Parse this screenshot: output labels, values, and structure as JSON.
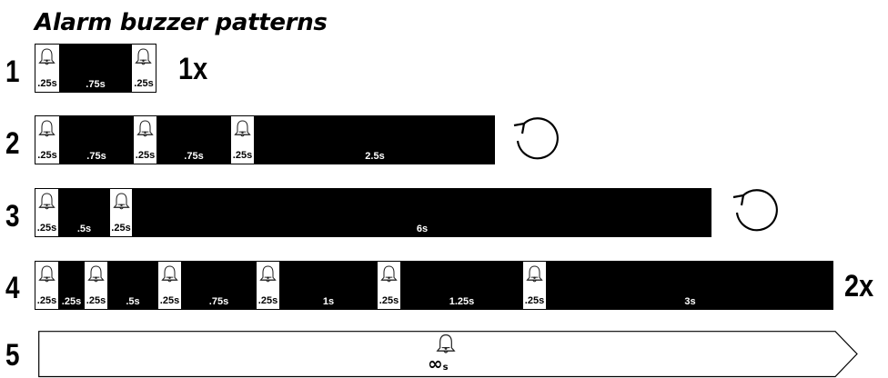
{
  "title": "Alarm buzzer patterns",
  "patterns": [
    {
      "number": "1",
      "note": "1x",
      "repeat": false,
      "segments": [
        {
          "type": "on",
          "label": ".25s",
          "duration": 0.25
        },
        {
          "type": "off",
          "label": ".75s",
          "duration": 0.75
        },
        {
          "type": "on",
          "label": ".25s",
          "duration": 0.25
        }
      ]
    },
    {
      "number": "2",
      "note": "",
      "repeat": true,
      "segments": [
        {
          "type": "on",
          "label": ".25s",
          "duration": 0.25
        },
        {
          "type": "off",
          "label": ".75s",
          "duration": 0.75
        },
        {
          "type": "on",
          "label": ".25s",
          "duration": 0.25
        },
        {
          "type": "off",
          "label": ".75s",
          "duration": 0.75
        },
        {
          "type": "on",
          "label": ".25s",
          "duration": 0.25
        },
        {
          "type": "off",
          "label": "2.5s",
          "duration": 2.5
        }
      ]
    },
    {
      "number": "3",
      "note": "",
      "repeat": true,
      "segments": [
        {
          "type": "on",
          "label": ".25s",
          "duration": 0.25
        },
        {
          "type": "off",
          "label": ".5s",
          "duration": 0.5
        },
        {
          "type": "on",
          "label": ".25s",
          "duration": 0.25
        },
        {
          "type": "off",
          "label": "6s",
          "duration": 6
        }
      ]
    },
    {
      "number": "4",
      "note": "2x",
      "repeat": false,
      "segments": [
        {
          "type": "on",
          "label": ".25s",
          "duration": 0.25
        },
        {
          "type": "off",
          "label": ".25s",
          "duration": 0.25
        },
        {
          "type": "on",
          "label": ".25s",
          "duration": 0.25
        },
        {
          "type": "off",
          "label": ".5s",
          "duration": 0.5
        },
        {
          "type": "on",
          "label": ".25s",
          "duration": 0.25
        },
        {
          "type": "off",
          "label": ".75s",
          "duration": 0.75
        },
        {
          "type": "on",
          "label": ".25s",
          "duration": 0.25
        },
        {
          "type": "off",
          "label": "1s",
          "duration": 1
        },
        {
          "type": "on",
          "label": ".25s",
          "duration": 0.25
        },
        {
          "type": "off",
          "label": "1.25s",
          "duration": 1.25
        },
        {
          "type": "on",
          "label": ".25s",
          "duration": 0.25
        },
        {
          "type": "off",
          "label": "3s",
          "duration": 3
        }
      ]
    },
    {
      "number": "5",
      "continuous": true,
      "label_symbol": "∞",
      "label_unit": "s"
    }
  ],
  "icons": {
    "beep": "bell-icon",
    "repeat": "loop-arrow-icon"
  },
  "colors": {
    "on": "#ffffff",
    "off": "#000000",
    "ink": "#000000"
  }
}
